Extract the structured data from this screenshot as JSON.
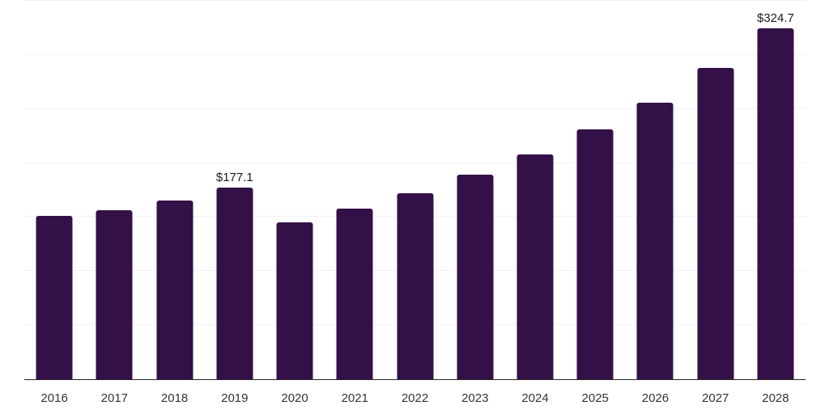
{
  "chart_data": {
    "type": "bar",
    "title": "",
    "categories": [
      "2016",
      "2017",
      "2018",
      "2019",
      "2020",
      "2021",
      "2022",
      "2023",
      "2024",
      "2025",
      "2026",
      "2027",
      "2028"
    ],
    "values": [
      151,
      156,
      165,
      177.1,
      145,
      158,
      172,
      189,
      208,
      231,
      256,
      288,
      324.7
    ],
    "value_labels": [
      "",
      "",
      "",
      "$177.1",
      "",
      "",
      "",
      "",
      "",
      "",
      "",
      "",
      "$324.7"
    ],
    "xlabel": "",
    "ylabel": "",
    "ylim": [
      0,
      350
    ],
    "gridline_step": 50,
    "grid": "horizontal",
    "legend_position": "none",
    "colors": {
      "bar": "#331048",
      "gridline": "#f2f2f2",
      "axis": "#262626",
      "value_label_text": "#1a1a1a",
      "tick_label_text": "#333333",
      "background": "#ffffff"
    }
  }
}
